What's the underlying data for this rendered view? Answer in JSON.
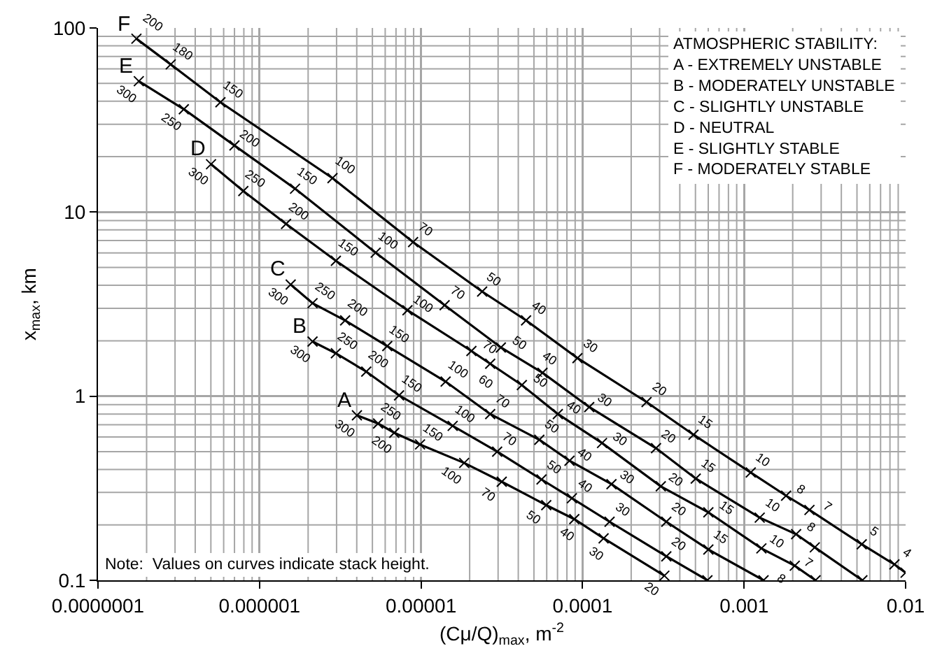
{
  "chart_data": {
    "type": "line",
    "xlabel": "(Cμ/Q)$_{max}$, m$^{-2}$",
    "ylabel": "x$_{max}$, km",
    "log": "xy",
    "grid": true,
    "marker": "cross",
    "line_style": "solid",
    "xlim": [
      1e-07,
      0.01
    ],
    "ylim": [
      0.1,
      100
    ],
    "xticks": [
      {
        "value": 1e-07,
        "label": "0.0000001"
      },
      {
        "value": 1e-06,
        "label": "0.000001"
      },
      {
        "value": 1e-05,
        "label": "0.00001"
      },
      {
        "value": 0.0001,
        "label": "0.0001"
      },
      {
        "value": 0.001,
        "label": "0.001"
      },
      {
        "value": 0.01,
        "label": "0.01"
      }
    ],
    "yticks": [
      0.1,
      1,
      10,
      100
    ],
    "series": [
      {
        "name": "A",
        "color": "#000000",
        "x": [
          4.01e-06,
          5.42e-06,
          6.83e-06,
          9.86e-06,
          1.85e-05,
          3.16e-05,
          5.96e-05,
          8.89e-05,
          0.000135,
          0.000321
        ],
        "values": [
          0.787,
          0.711,
          0.633,
          0.547,
          0.434,
          0.343,
          0.256,
          0.215,
          0.169,
          0.106
        ]
      },
      {
        "name": "B",
        "color": "#000000",
        "x": [
          2.13e-06,
          2.97e-06,
          4.58e-06,
          7.31e-06,
          1.57e-05,
          2.96e-05,
          5.57e-05,
          8.59e-05,
          0.000147,
          0.00033,
          0.000593
        ],
        "values": [
          1.98,
          1.71,
          1.36,
          1.01,
          0.69,
          0.5,
          0.353,
          0.279,
          0.208,
          0.135,
          0.1
        ]
      },
      {
        "name": "C",
        "color": "#000000",
        "x": [
          1.56e-06,
          2.13e-06,
          3.39e-06,
          6.18e-06,
          1.42e-05,
          2.68e-05,
          5.4e-05,
          8.3e-05,
          0.000151,
          0.00033,
          0.000601,
          0.00132
        ],
        "values": [
          4.04,
          3.2,
          2.58,
          1.87,
          1.2,
          0.8,
          0.58,
          0.446,
          0.333,
          0.208,
          0.147,
          0.1
        ]
      },
      {
        "name": "D",
        "color": "#000000",
        "x": [
          5.01e-07,
          7.94e-07,
          1.46e-06,
          2.97e-06,
          8.24e-06,
          2.05e-05,
          2.68e-05,
          4.21e-05,
          7.03e-05,
          0.000132,
          0.000305,
          0.000601,
          0.00128,
          0.00206,
          0.00277
        ],
        "values": [
          18.2,
          13,
          8.63,
          5.44,
          2.93,
          1.76,
          1.5,
          1.15,
          0.8,
          0.557,
          0.324,
          0.234,
          0.149,
          0.12,
          0.1
        ]
      },
      {
        "name": "E",
        "color": "#000000",
        "x": [
          1.79e-07,
          3.4e-07,
          7e-07,
          1.66e-06,
          5.24e-06,
          1.4e-05,
          3.12e-05,
          5.65e-05,
          0.00011,
          0.000285,
          0.000502,
          0.00125,
          0.0021,
          0.00274,
          0.0054
        ],
        "values": [
          51.4,
          36.2,
          23,
          13.4,
          6.02,
          3.12,
          1.84,
          1.34,
          0.873,
          0.522,
          0.357,
          0.219,
          0.178,
          0.151,
          0.1
        ]
      },
      {
        "name": "F",
        "color": "#000000",
        "x": [
          1.73e-07,
          2.82e-07,
          5.73e-07,
          2.83e-06,
          8.93e-06,
          2.39e-05,
          4.47e-05,
          9.3e-05,
          0.000249,
          0.000486,
          0.0011,
          0.00182,
          0.00254,
          0.00535,
          0.00853,
          0.01
        ],
        "values": [
          87.4,
          63.4,
          39.5,
          15.3,
          6.87,
          3.7,
          2.58,
          1.61,
          0.93,
          0.618,
          0.385,
          0.288,
          0.241,
          0.157,
          0.122,
          0.11
        ]
      }
    ],
    "annotations": [
      "ATMOSPHERIC STABILITY:\nA - EXTREMELY UNSTABLE\nB - MODERATELY UNSTABLE\nC - SLIGHTLY UNSTABLE\nD - NEUTRAL\nE - SLIGHTLY STABLE\nF - MODERATELY STABLE",
      "Note:  Values on curves indicate stack height.",
      {
        "text": "300",
        "x": 4.01e-06,
        "y": 0.787
      },
      {
        "text": "250",
        "x": 5.42e-06,
        "y": 0.711
      },
      {
        "text": "200",
        "x": 6.83e-06,
        "y": 0.633
      },
      {
        "text": "150",
        "x": 9.86e-06,
        "y": 0.547
      },
      {
        "text": "100",
        "x": 1.85e-05,
        "y": 0.434
      },
      {
        "text": "70",
        "x": 3.16e-05,
        "y": 0.343
      },
      {
        "text": "50",
        "x": 5.96e-05,
        "y": 0.256
      },
      {
        "text": "40",
        "x": 8.89e-05,
        "y": 0.215
      },
      {
        "text": "30",
        "x": 0.000135,
        "y": 0.169
      },
      {
        "text": "20",
        "x": 0.000321,
        "y": 0.106
      },
      {
        "text": "300",
        "x": 2.13e-06,
        "y": 1.98
      },
      {
        "text": "250",
        "x": 2.97e-06,
        "y": 1.71
      },
      {
        "text": "200",
        "x": 4.58e-06,
        "y": 1.36
      },
      {
        "text": "150",
        "x": 7.31e-06,
        "y": 1.01
      },
      {
        "text": "100",
        "x": 1.57e-05,
        "y": 0.69
      },
      {
        "text": "70",
        "x": 2.96e-05,
        "y": 0.5
      },
      {
        "text": "50",
        "x": 5.57e-05,
        "y": 0.353
      },
      {
        "text": "40",
        "x": 8.59e-05,
        "y": 0.279
      },
      {
        "text": "30",
        "x": 0.000147,
        "y": 0.208
      },
      {
        "text": "20",
        "x": 0.00033,
        "y": 0.135
      },
      {
        "text": "300",
        "x": 1.56e-06,
        "y": 4.04
      },
      {
        "text": "250",
        "x": 2.13e-06,
        "y": 3.2
      },
      {
        "text": "200",
        "x": 3.39e-06,
        "y": 2.58
      },
      {
        "text": "150",
        "x": 6.18e-06,
        "y": 1.87
      },
      {
        "text": "100",
        "x": 1.42e-05,
        "y": 1.2
      },
      {
        "text": "70",
        "x": 2.68e-05,
        "y": 0.8
      },
      {
        "text": "50",
        "x": 5.4e-05,
        "y": 0.58
      },
      {
        "text": "40",
        "x": 8.3e-05,
        "y": 0.446
      },
      {
        "text": "30",
        "x": 0.000151,
        "y": 0.333
      },
      {
        "text": "20",
        "x": 0.00033,
        "y": 0.208
      },
      {
        "text": "15",
        "x": 0.000601,
        "y": 0.147
      },
      {
        "text": "300",
        "x": 5.01e-07,
        "y": 18.2
      },
      {
        "text": "250",
        "x": 7.94e-07,
        "y": 13
      },
      {
        "text": "200",
        "x": 1.46e-06,
        "y": 8.63
      },
      {
        "text": "150",
        "x": 2.97e-06,
        "y": 5.44
      },
      {
        "text": "100",
        "x": 8.24e-06,
        "y": 2.93
      },
      {
        "text": "70",
        "x": 2.05e-05,
        "y": 1.76
      },
      {
        "text": "60",
        "x": 2.68e-05,
        "y": 1.5
      },
      {
        "text": "50",
        "x": 4.21e-05,
        "y": 1.15
      },
      {
        "text": "40",
        "x": 7.03e-05,
        "y": 0.8
      },
      {
        "text": "30",
        "x": 0.000132,
        "y": 0.557
      },
      {
        "text": "20",
        "x": 0.000305,
        "y": 0.324
      },
      {
        "text": "15",
        "x": 0.000601,
        "y": 0.234
      },
      {
        "text": "10",
        "x": 0.00128,
        "y": 0.149
      },
      {
        "text": "8",
        "x": 0.00206,
        "y": 0.12
      },
      {
        "text": "300",
        "x": 1.79e-07,
        "y": 51.4
      },
      {
        "text": "250",
        "x": 3.4e-07,
        "y": 36.2
      },
      {
        "text": "200",
        "x": 7e-07,
        "y": 23
      },
      {
        "text": "150",
        "x": 1.66e-06,
        "y": 13.4
      },
      {
        "text": "100",
        "x": 5.24e-06,
        "y": 6.02
      },
      {
        "text": "70",
        "x": 1.4e-05,
        "y": 3.12
      },
      {
        "text": "50",
        "x": 3.12e-05,
        "y": 1.84
      },
      {
        "text": "40",
        "x": 5.65e-05,
        "y": 1.34
      },
      {
        "text": "30",
        "x": 0.00011,
        "y": 0.873
      },
      {
        "text": "20",
        "x": 0.000285,
        "y": 0.522
      },
      {
        "text": "15",
        "x": 0.000502,
        "y": 0.357
      },
      {
        "text": "10",
        "x": 0.00125,
        "y": 0.219
      },
      {
        "text": "8",
        "x": 0.0021,
        "y": 0.178
      },
      {
        "text": "7",
        "x": 0.00274,
        "y": 0.151
      },
      {
        "text": "200",
        "x": 1.73e-07,
        "y": 87.4
      },
      {
        "text": "180",
        "x": 2.82e-07,
        "y": 63.4
      },
      {
        "text": "150",
        "x": 5.73e-07,
        "y": 39.5
      },
      {
        "text": "100",
        "x": 2.83e-06,
        "y": 15.3
      },
      {
        "text": "70",
        "x": 8.93e-06,
        "y": 6.87
      },
      {
        "text": "50",
        "x": 2.39e-05,
        "y": 3.7
      },
      {
        "text": "40",
        "x": 4.47e-05,
        "y": 2.58
      },
      {
        "text": "30",
        "x": 9.3e-05,
        "y": 1.61
      },
      {
        "text": "20",
        "x": 0.000249,
        "y": 0.93
      },
      {
        "text": "15",
        "x": 0.000486,
        "y": 0.618
      },
      {
        "text": "10",
        "x": 0.0011,
        "y": 0.385
      },
      {
        "text": "8",
        "x": 0.00182,
        "y": 0.288
      },
      {
        "text": "7",
        "x": 0.00254,
        "y": 0.241
      },
      {
        "text": "5",
        "x": 0.00535,
        "y": 0.157
      },
      {
        "text": "4",
        "x": 0.00853,
        "y": 0.122
      }
    ]
  }
}
